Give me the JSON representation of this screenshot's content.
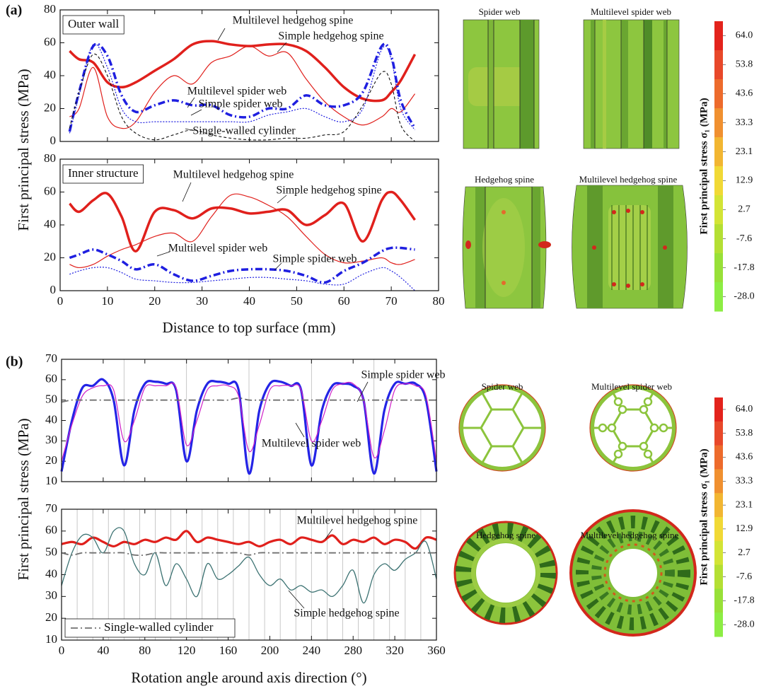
{
  "panel_labels": [
    "(a)",
    "(b)"
  ],
  "chart_data": [
    {
      "type": "line",
      "annotation": "Outer wall",
      "ylabel": "First principal stress (MPa)",
      "x": [
        2,
        4,
        7,
        10,
        13,
        16,
        20,
        24,
        28,
        32,
        36,
        40,
        44,
        48,
        52,
        56,
        60,
        64,
        68,
        70,
        72,
        75
      ],
      "xlim": [
        0,
        80
      ],
      "xticks": [
        0,
        10,
        20,
        30,
        40,
        50,
        60,
        70,
        80
      ],
      "show_xtick_labels": false,
      "ylim": [
        0,
        80
      ],
      "yticks": [
        0,
        20,
        40,
        60,
        80
      ],
      "series": [
        {
          "name": "Multilevel hedgehog spine",
          "color": "#e0201c",
          "width": 3.5,
          "dash": "solid",
          "values": [
            55,
            50,
            48,
            36,
            33,
            36,
            43,
            50,
            59,
            61,
            59,
            58,
            59,
            59,
            55,
            45,
            33,
            26,
            25,
            30,
            37,
            53
          ]
        },
        {
          "name": "Simple hedgehog spine",
          "color": "#e0201c",
          "width": 1.2,
          "dash": "solid",
          "values": [
            15,
            20,
            45,
            15,
            8,
            12,
            30,
            40,
            35,
            48,
            52,
            58,
            52,
            54,
            38,
            24,
            15,
            10,
            15,
            20,
            18,
            29
          ]
        },
        {
          "name": "Multilevel spider web",
          "color": "#1f1fe0",
          "width": 3.5,
          "dash": "dashdot",
          "values": [
            6,
            30,
            58,
            52,
            28,
            18,
            22,
            25,
            22,
            22,
            16,
            15,
            20,
            20,
            28,
            22,
            22,
            30,
            58,
            52,
            25,
            8
          ]
        },
        {
          "name": "Simple spider web",
          "color": "#1f1fe0",
          "width": 1.2,
          "dash": "dot",
          "values": [
            5,
            28,
            59,
            45,
            20,
            12,
            12,
            12,
            12,
            12,
            12,
            12,
            16,
            18,
            20,
            15,
            12,
            20,
            56,
            50,
            20,
            7
          ]
        },
        {
          "name": "Single-walled cylinder",
          "color": "#111111",
          "width": 1.1,
          "dash": "dash",
          "values": [
            8,
            30,
            53,
            40,
            15,
            5,
            1,
            4,
            7,
            4,
            2,
            1,
            1,
            2,
            2,
            4,
            6,
            22,
            42,
            35,
            10,
            0
          ]
        }
      ]
    },
    {
      "type": "line",
      "annotation": "Inner structure",
      "xlabel": "Distance to top surface (mm)",
      "x": [
        2,
        4,
        7,
        10,
        13,
        16,
        20,
        24,
        28,
        32,
        36,
        40,
        44,
        48,
        52,
        56,
        60,
        64,
        68,
        70,
        72,
        75
      ],
      "xlim": [
        0,
        80
      ],
      "xticks": [
        0,
        10,
        20,
        30,
        40,
        50,
        60,
        70,
        80
      ],
      "ylim": [
        0,
        80
      ],
      "yticks": [
        0,
        20,
        40,
        60,
        80
      ],
      "series": [
        {
          "name": "Multilevel hedgehog spine",
          "color": "#e0201c",
          "width": 3.5,
          "dash": "solid",
          "values": [
            53,
            48,
            55,
            59,
            45,
            24,
            48,
            49,
            44,
            50,
            50,
            47,
            48,
            49,
            40,
            46,
            53,
            30,
            55,
            60,
            55,
            43
          ]
        },
        {
          "name": "Simple hedgehog spine",
          "color": "#e0201c",
          "width": 1.2,
          "dash": "solid",
          "values": [
            16,
            14,
            16,
            21,
            25,
            28,
            33,
            35,
            30,
            45,
            58,
            57,
            52,
            45,
            33,
            22,
            17,
            18,
            20,
            17,
            16,
            19
          ]
        },
        {
          "name": "Multilevel spider web",
          "color": "#1f1fe0",
          "width": 3.5,
          "dash": "dashdot",
          "values": [
            20,
            22,
            25,
            22,
            18,
            13,
            16,
            10,
            6,
            9,
            12,
            13,
            13,
            12,
            9,
            5,
            12,
            17,
            24,
            26,
            26,
            25
          ]
        },
        {
          "name": "Simple spider web",
          "color": "#1f1fe0",
          "width": 1.2,
          "dash": "dot",
          "values": [
            10,
            12,
            14,
            14,
            11,
            7,
            6,
            5,
            5,
            6,
            7,
            8,
            8,
            7,
            6,
            4,
            4,
            10,
            14,
            12,
            8,
            0
          ]
        }
      ]
    },
    {
      "type": "line",
      "ylabel": "First principal stress (MPa)",
      "x": [
        0,
        10,
        20,
        30,
        40,
        50,
        60,
        70,
        80,
        90,
        100,
        110,
        120,
        130,
        140,
        150,
        160,
        170,
        180,
        190,
        200,
        210,
        220,
        230,
        240,
        250,
        260,
        270,
        280,
        290,
        300,
        310,
        320,
        330,
        340,
        350,
        360
      ],
      "xlim": [
        0,
        360
      ],
      "xticks": [
        0,
        40,
        80,
        120,
        160,
        200,
        240,
        280,
        320,
        360
      ],
      "show_xtick_labels": false,
      "ylim": [
        10,
        70
      ],
      "yticks": [
        10,
        20,
        30,
        40,
        50,
        60,
        70
      ],
      "vlines": [
        60,
        120,
        180,
        240,
        300
      ],
      "series": [
        {
          "name": "Multilevel spider web",
          "color": "#2424e6",
          "width": 3.2,
          "dash": "solid",
          "values": [
            15,
            40,
            56,
            57,
            60,
            50,
            18,
            45,
            58,
            59,
            58,
            55,
            20,
            45,
            58,
            59,
            58,
            55,
            14,
            45,
            58,
            59,
            57,
            55,
            18,
            45,
            57,
            58,
            57,
            50,
            14,
            45,
            58,
            58,
            58,
            50,
            15
          ]
        },
        {
          "name": "Simple spider web",
          "color": "#d020c8",
          "width": 1.2,
          "dash": "solid",
          "values": [
            20,
            38,
            52,
            56,
            57,
            55,
            30,
            40,
            56,
            57,
            57,
            56,
            28,
            40,
            55,
            57,
            57,
            52,
            25,
            38,
            55,
            57,
            57,
            55,
            30,
            40,
            55,
            58,
            58,
            50,
            22,
            35,
            55,
            58,
            57,
            52,
            20
          ]
        },
        {
          "color": "#707070",
          "width": 1.8,
          "dash": "dashdot",
          "values": [
            49,
            50,
            50,
            50,
            50,
            50,
            50,
            50,
            50,
            50,
            50,
            50,
            50,
            50,
            50,
            50,
            50,
            51,
            50,
            50,
            50,
            50,
            50,
            50,
            50,
            50,
            50,
            50,
            50,
            50,
            50,
            50,
            50,
            50,
            50,
            50,
            50
          ]
        }
      ]
    },
    {
      "type": "line",
      "xlabel": "Rotation angle around axis direction (°)",
      "x": [
        0,
        10,
        20,
        30,
        40,
        50,
        60,
        70,
        80,
        90,
        100,
        110,
        120,
        130,
        140,
        150,
        160,
        170,
        180,
        190,
        200,
        210,
        220,
        230,
        240,
        250,
        260,
        270,
        280,
        290,
        300,
        310,
        320,
        330,
        340,
        350,
        360
      ],
      "xlim": [
        0,
        360
      ],
      "xticks": [
        0,
        40,
        80,
        120,
        160,
        200,
        240,
        280,
        320,
        360
      ],
      "ylim": [
        10,
        70
      ],
      "yticks": [
        10,
        20,
        30,
        40,
        50,
        60,
        70
      ],
      "vlines": [
        15,
        30,
        45,
        60,
        75,
        90,
        105,
        120,
        135,
        150,
        165,
        180,
        195,
        210,
        225,
        240,
        255,
        270,
        285,
        300,
        315,
        330,
        345
      ],
      "series": [
        {
          "name": "Multilevel hedgehog spine",
          "color": "#e0201c",
          "width": 3.2,
          "dash": "solid",
          "values": [
            54,
            55,
            54,
            57,
            55,
            53,
            55,
            54,
            56,
            55,
            57,
            56,
            60,
            55,
            57,
            56,
            55,
            54,
            55,
            53,
            55,
            56,
            54,
            57,
            56,
            55,
            58,
            54,
            56,
            55,
            57,
            54,
            56,
            55,
            52,
            57,
            56
          ]
        },
        {
          "name": "Simple hedgehog spine",
          "color": "#3d7373",
          "width": 1.3,
          "dash": "solid",
          "values": [
            35,
            50,
            58,
            57,
            50,
            60,
            60,
            45,
            40,
            50,
            35,
            45,
            38,
            30,
            45,
            38,
            40,
            44,
            48,
            40,
            35,
            38,
            33,
            35,
            32,
            33,
            30,
            35,
            42,
            27,
            40,
            45,
            42,
            47,
            50,
            55,
            38
          ]
        },
        {
          "name": "Single-walled cylinder",
          "color": "#707070",
          "width": 1.8,
          "dash": "dashdot",
          "in_legend": true,
          "values": [
            50,
            49,
            50,
            50,
            50,
            50,
            50,
            49,
            49,
            50,
            50,
            50,
            50,
            50,
            50,
            50,
            50,
            50,
            49,
            50,
            50,
            50,
            50,
            50,
            50,
            50,
            50,
            50,
            50,
            50,
            50,
            50,
            50,
            50,
            50,
            50,
            50
          ]
        }
      ]
    }
  ],
  "images": [
    {
      "caption": "Spider web"
    },
    {
      "caption": "Multilevel spider web"
    },
    {
      "caption": "Hedgehog spine"
    },
    {
      "caption": "Multilevel hedgehog spine"
    },
    {
      "caption": "Spider web"
    },
    {
      "caption": "Multilevel spider web"
    },
    {
      "caption": "Hedgehog spine"
    },
    {
      "caption": "Multilevel hedgehog spine"
    }
  ],
  "colorbars": [
    {
      "title": "First principal stress σ₁ (MPa)",
      "colors": [
        "#e3231c",
        "#e8482a",
        "#ed6b2c",
        "#f09030",
        "#f2b632",
        "#f1d936",
        "#d3e436",
        "#b4df34",
        "#98e038",
        "#8ded44"
      ],
      "ticks": [
        {
          "value": 64,
          "label": "64.0"
        },
        53.8,
        43.6,
        33.3,
        23.1,
        12.9,
        2.7,
        -7.6,
        -17.8,
        {
          "value": -28,
          "label": "-28.0"
        }
      ]
    },
    {
      "title": "First principal stress σ₁ (MPa)",
      "colors": [
        "#e3231c",
        "#e8482a",
        "#ed6b2c",
        "#f09030",
        "#f2b632",
        "#f1d936",
        "#d3e436",
        "#b4df34",
        "#98e038",
        "#8ded44"
      ],
      "ticks": [
        {
          "value": 64,
          "label": "64.0"
        },
        53.8,
        43.6,
        33.3,
        23.1,
        12.9,
        2.7,
        -7.6,
        -17.8,
        {
          "value": -28,
          "label": "-28.0"
        }
      ]
    }
  ]
}
